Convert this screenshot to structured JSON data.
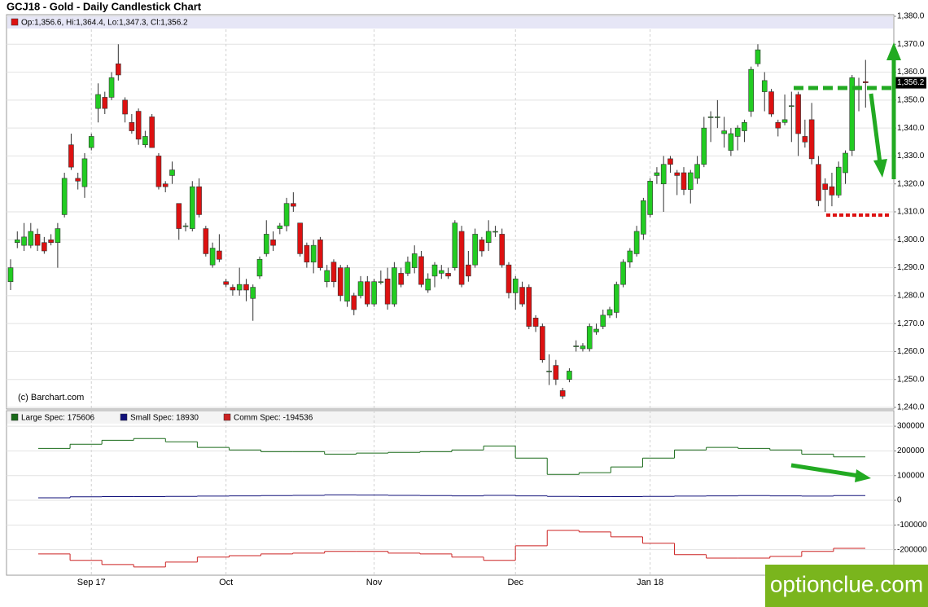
{
  "chart_data": [
    {
      "type": "candlestick",
      "title": "GCJ18 - Gold - Daily Candlestick Chart",
      "source": "(c) Barchart.com",
      "categories": [
        null,
        null,
        null,
        null,
        null,
        null,
        null,
        null,
        null,
        null,
        null,
        null,
        "Sep 17",
        null,
        null,
        null,
        null,
        null,
        null,
        null,
        null,
        null,
        null,
        null,
        null,
        null,
        null,
        null,
        null,
        null,
        null,
        null,
        "Oct",
        null,
        null,
        null,
        null,
        null,
        null,
        null,
        null,
        null,
        null,
        null,
        null,
        null,
        null,
        null,
        null,
        null,
        null,
        null,
        null,
        null,
        "Nov",
        null,
        null,
        null,
        null,
        null,
        null,
        null,
        null,
        null,
        null,
        null,
        null,
        null,
        null,
        null,
        null,
        null,
        null,
        null,
        null,
        "Dec",
        null,
        null,
        null,
        null,
        null,
        null,
        null,
        null,
        null,
        null,
        null,
        null,
        null,
        null,
        null,
        null,
        null,
        null,
        null,
        "Jan 18",
        null,
        null,
        null,
        null,
        null,
        null,
        null,
        null,
        null,
        null,
        null,
        null,
        null,
        null,
        null,
        null,
        null,
        null,
        null,
        null,
        null,
        null,
        null,
        null,
        null,
        null,
        null,
        null,
        null,
        null,
        null,
        null
      ],
      "series": [
        {
          "name": "Op:1,356.6, Hi:1,364.4, Lo:1,347.3, Cl:1,356.2",
          "color": "#dd1111",
          "open": [
            1285,
            1299,
            1298,
            1298,
            1302,
            1299,
            1300,
            1299,
            1309,
            1334,
            1322,
            1319,
            1333,
            1347,
            1351,
            1351,
            1363,
            1350,
            1342,
            1346,
            1334,
            1344,
            1330,
            1320,
            1323,
            1313,
            1305,
            1304,
            1319,
            1304,
            1291,
            1296,
            1285,
            1283,
            1282,
            1284,
            1279,
            1287,
            1295,
            1300,
            1304,
            1305,
            1313,
            1306,
            1298,
            1292,
            1300,
            1285,
            1292,
            1290,
            1278,
            1280,
            1280,
            1285,
            1277,
            1285,
            1286,
            1277,
            1288,
            1288,
            1290,
            1294,
            1282,
            1287,
            1288,
            1288,
            1290,
            1303,
            1291,
            1291,
            1300,
            1299,
            1303,
            1302,
            1291,
            1281,
            1283,
            1283,
            1272,
            1269,
            1253,
            1255,
            1246,
            1250,
            1262,
            1261,
            1261,
            1267,
            1269,
            1273,
            1274,
            1284,
            1292,
            1295,
            1302,
            1309,
            1323,
            1320,
            1329,
            1324,
            1324,
            1318,
            1322,
            1327,
            1344,
            1344,
            1338,
            1332,
            1337,
            1339,
            1346,
            1363,
            1353,
            1353,
            1342,
            1342,
            1348,
            1352,
            1337,
            1343,
            1327,
            1320,
            1319,
            1316,
            1324,
            1332,
            1355,
            1356.6
          ],
          "high": [
            1293,
            1303,
            1306,
            1306,
            1304,
            1301,
            1302,
            1306,
            1324,
            1338,
            1324,
            1331,
            1338,
            1356,
            1353,
            1360,
            1370,
            1351,
            1345,
            1347,
            1339,
            1345,
            1331,
            1321,
            1328,
            1313,
            1306,
            1321,
            1322,
            1305,
            1299,
            1302,
            1286,
            1284,
            1290,
            1286,
            1284,
            1294,
            1307,
            1303,
            1306,
            1315,
            1317,
            1306,
            1299,
            1300,
            1301,
            1291,
            1293,
            1291,
            1291,
            1281,
            1287,
            1287,
            1286,
            1289,
            1290,
            1292,
            1290,
            1294,
            1298,
            1296,
            1288,
            1292,
            1291,
            1290,
            1307,
            1305,
            1296,
            1304,
            1301,
            1307,
            1305,
            1304,
            1292,
            1287,
            1285,
            1284,
            1273,
            1270,
            1259,
            1257,
            1247,
            1254,
            1264,
            1263,
            1270,
            1270,
            1275,
            1276,
            1285,
            1293,
            1297,
            1305,
            1315,
            1322,
            1326,
            1330,
            1330,
            1325,
            1326,
            1325,
            1330,
            1344,
            1346,
            1350,
            1344,
            1340,
            1341,
            1343,
            1362,
            1370,
            1360,
            1354,
            1343,
            1352,
            1353,
            1353,
            1343,
            1349,
            1330,
            1322,
            1324,
            1328,
            1332,
            1359,
            1358,
            1364.4
          ],
          "low": [
            1282,
            1297,
            1296,
            1297,
            1296,
            1295,
            1298,
            1290,
            1308,
            1325,
            1318,
            1315,
            1332,
            1342,
            1345,
            1350,
            1357,
            1342,
            1338,
            1334,
            1333,
            1333,
            1318,
            1317,
            1320,
            1300,
            1303,
            1303,
            1308,
            1294,
            1290,
            1292,
            1283,
            1280,
            1280,
            1278,
            1271,
            1286,
            1294,
            1296,
            1302,
            1303,
            1310,
            1294,
            1290,
            1288,
            1289,
            1283,
            1283,
            1278,
            1276,
            1273,
            1279,
            1276,
            1276,
            1284,
            1275,
            1276,
            1283,
            1287,
            1288,
            1283,
            1281,
            1283,
            1286,
            1286,
            1289,
            1283,
            1285,
            1290,
            1294,
            1296,
            1301,
            1290,
            1279,
            1275,
            1276,
            1268,
            1267,
            1256,
            1248,
            1248,
            1243,
            1249,
            1260,
            1260,
            1260,
            1266,
            1268,
            1272,
            1272,
            1283,
            1290,
            1294,
            1300,
            1308,
            1320,
            1310,
            1324,
            1316,
            1316,
            1313,
            1320,
            1326,
            1335,
            1340,
            1333,
            1330,
            1332,
            1335,
            1344,
            1362,
            1346,
            1344,
            1337,
            1341,
            1335,
            1330,
            1333,
            1327,
            1312,
            1310,
            1312,
            1315,
            1320,
            1330,
            1346,
            1347.3
          ],
          "close": [
            1290,
            1300,
            1301,
            1303,
            1298,
            1296,
            1299,
            1304,
            1322,
            1326,
            1321,
            1329,
            1337,
            1352,
            1347,
            1358,
            1359,
            1345,
            1339,
            1336,
            1337,
            1333,
            1319,
            1319,
            1325,
            1304,
            1305,
            1319,
            1309,
            1295,
            1297,
            1293,
            1284,
            1282,
            1284,
            1282,
            1283,
            1293,
            1302,
            1298,
            1305,
            1313,
            1312,
            1295,
            1292,
            1298,
            1290,
            1289,
            1285,
            1280,
            1290,
            1275,
            1285,
            1277,
            1285,
            1285,
            1277,
            1290,
            1284,
            1292,
            1295,
            1284,
            1286,
            1291,
            1289,
            1287,
            1306,
            1284,
            1287,
            1302,
            1296,
            1303,
            1303,
            1291,
            1281,
            1286,
            1277,
            1269,
            1269,
            1257,
            1253,
            1250,
            1244,
            1253,
            1262,
            1262,
            1269,
            1268,
            1273,
            1275,
            1284,
            1292,
            1296,
            1303,
            1314,
            1321,
            1324,
            1327,
            1327,
            1323,
            1318,
            1324,
            1327,
            1340,
            1344,
            1344,
            1339,
            1338,
            1340,
            1342,
            1361,
            1368,
            1357,
            1345,
            1340,
            1343,
            1348,
            1338,
            1335,
            1329,
            1314,
            1318,
            1316,
            1326,
            1331,
            1358,
            1355,
            1356.2
          ]
        }
      ],
      "up_color": "#22cc22",
      "down_color": "#dd1111",
      "ylim": [
        1240,
        1380
      ],
      "yticks": [
        {
          "value": 1240,
          "label": "1,240.0"
        },
        {
          "value": 1250,
          "label": "1,250.0"
        },
        {
          "value": 1260,
          "label": "1,260.0"
        },
        {
          "value": 1270,
          "label": "1,270.0"
        },
        {
          "value": 1280,
          "label": "1,280.0"
        },
        {
          "value": 1290,
          "label": "1,290.0"
        },
        {
          "value": 1300,
          "label": "1,300.0"
        },
        {
          "value": 1310,
          "label": "1,310.0"
        },
        {
          "value": 1320,
          "label": "1,320.0"
        },
        {
          "value": 1330,
          "label": "1,330.0"
        },
        {
          "value": 1340,
          "label": "1,340.0"
        },
        {
          "value": 1350,
          "label": "1,350.0"
        },
        {
          "value": 1360,
          "label": "1,360.0"
        },
        {
          "value": 1370,
          "label": "1,370.0"
        },
        {
          "value": 1380,
          "label": "1,380.0"
        }
      ],
      "last_price": {
        "value": 1356.2,
        "label": "1,356.2"
      },
      "grid": true
    },
    {
      "type": "step",
      "series": [
        {
          "name": "Large Spec: 175606",
          "color": "#1a6b1a",
          "values": [
            210000,
            227000,
            243000,
            250000,
            237000,
            214000,
            204000,
            197000,
            197000,
            187000,
            191000,
            194000,
            197000,
            204000,
            220000,
            171000,
            105000,
            112000,
            135000,
            171000,
            204000,
            214000,
            210000,
            204000,
            187000,
            175606
          ]
        },
        {
          "name": "Small Spec: 18930",
          "color": "#10107a",
          "values": [
            10000,
            14000,
            15000,
            15000,
            16000,
            17000,
            18000,
            19000,
            20000,
            22000,
            21000,
            20000,
            19000,
            18000,
            20000,
            18000,
            16000,
            15000,
            15000,
            16000,
            17000,
            18000,
            19000,
            18000,
            17000,
            18930
          ]
        },
        {
          "name": "Comm Spec: -194536",
          "color": "#cc2222",
          "values": [
            -217000,
            -243000,
            -260000,
            -270000,
            -250000,
            -230000,
            -224000,
            -217000,
            -214000,
            -207000,
            -207000,
            -214000,
            -217000,
            -230000,
            -243000,
            -184000,
            -122000,
            -128000,
            -148000,
            -174000,
            -220000,
            -234000,
            -234000,
            -227000,
            -207000,
            -194536
          ]
        }
      ],
      "ylim": [
        -300000,
        330000
      ],
      "yticks": [
        300000,
        200000,
        100000,
        0,
        -100000,
        -200000
      ],
      "grid": true
    }
  ],
  "watermark": "optionclue.com"
}
